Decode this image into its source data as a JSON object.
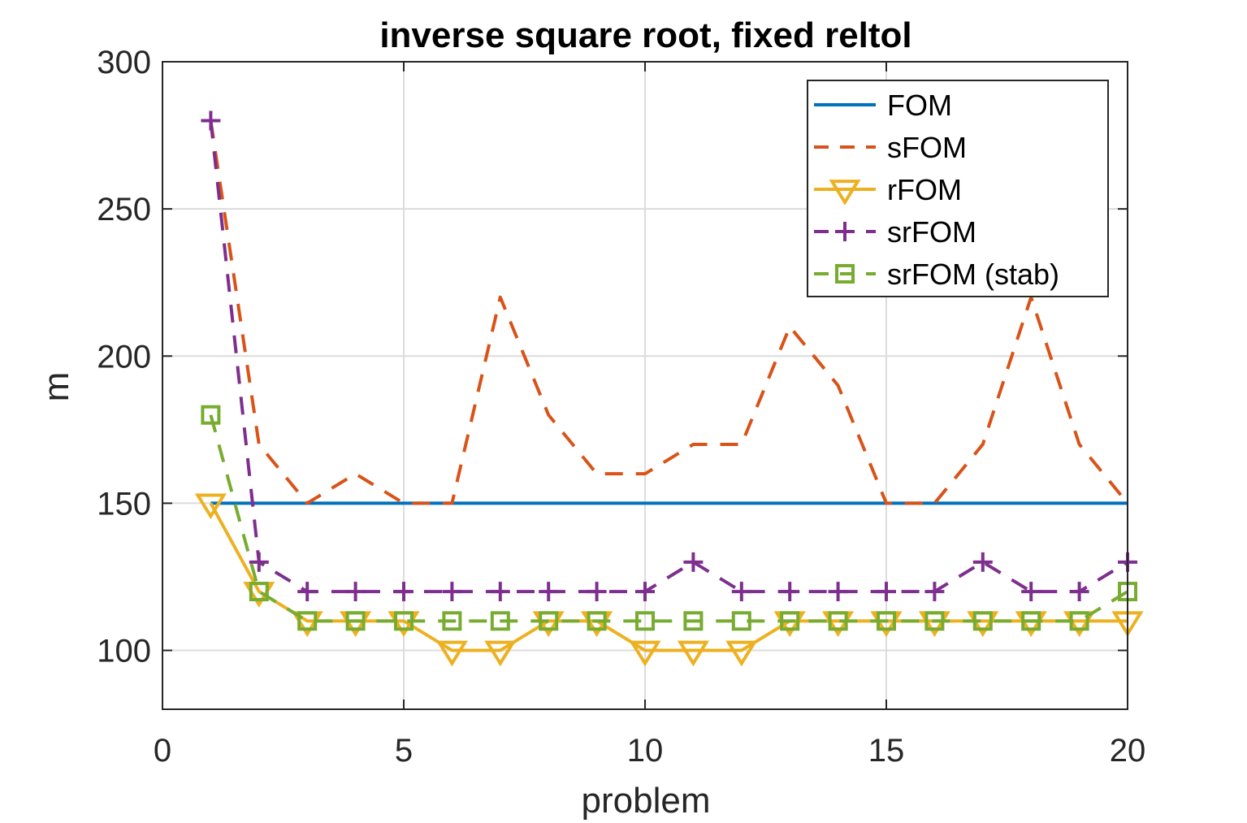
{
  "chart_data": {
    "type": "line",
    "title": "inverse square root, fixed reltol",
    "xlabel": "problem",
    "ylabel": "m",
    "xlim": [
      0,
      20
    ],
    "ylim": [
      80,
      300
    ],
    "xticks": [
      0,
      5,
      10,
      15,
      20
    ],
    "yticks": [
      100,
      150,
      200,
      250,
      300
    ],
    "grid": true,
    "legend_position": "top-right",
    "x": [
      1,
      2,
      3,
      4,
      5,
      6,
      7,
      8,
      9,
      10,
      11,
      12,
      13,
      14,
      15,
      16,
      17,
      18,
      19,
      20
    ],
    "series": [
      {
        "name": "FOM",
        "color": "#0072BD",
        "line": "solid",
        "marker": "none",
        "values": [
          150,
          150,
          150,
          150,
          150,
          150,
          150,
          150,
          150,
          150,
          150,
          150,
          150,
          150,
          150,
          150,
          150,
          150,
          150,
          150
        ]
      },
      {
        "name": "sFOM",
        "color": "#D95319",
        "line": "dashed",
        "marker": "none",
        "values": [
          280,
          170,
          150,
          160,
          150,
          150,
          220,
          180,
          160,
          160,
          170,
          170,
          210,
          190,
          150,
          150,
          170,
          220,
          170,
          150
        ]
      },
      {
        "name": "rFOM",
        "color": "#EDB120",
        "line": "solid",
        "marker": "triangle-down",
        "values": [
          150,
          120,
          110,
          110,
          110,
          100,
          100,
          110,
          110,
          100,
          100,
          100,
          110,
          110,
          110,
          110,
          110,
          110,
          110,
          110
        ]
      },
      {
        "name": "srFOM",
        "color": "#7E2F8E",
        "line": "dashed",
        "marker": "plus",
        "values": [
          280,
          130,
          120,
          120,
          120,
          120,
          120,
          120,
          120,
          120,
          130,
          120,
          120,
          120,
          120,
          120,
          130,
          120,
          120,
          130
        ]
      },
      {
        "name": "srFOM (stab)",
        "color": "#77AC30",
        "line": "dashed",
        "marker": "square",
        "values": [
          180,
          120,
          110,
          110,
          110,
          110,
          110,
          110,
          110,
          110,
          110,
          110,
          110,
          110,
          110,
          110,
          110,
          110,
          110,
          120
        ]
      }
    ]
  }
}
